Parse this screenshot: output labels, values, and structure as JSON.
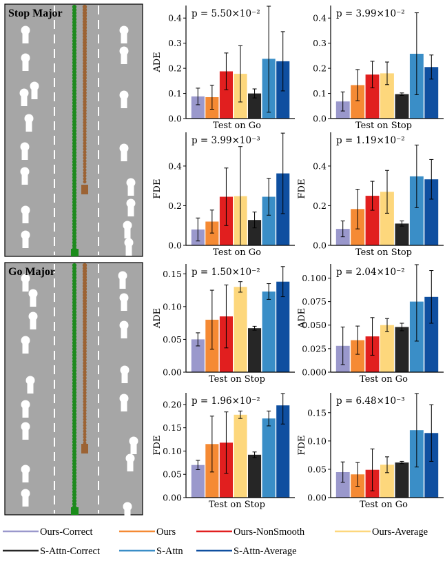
{
  "scenes": [
    {
      "title": "Stop Major",
      "agents": [
        [
          37,
          44
        ],
        [
          37,
          84
        ],
        [
          50,
          125
        ],
        [
          35,
          135
        ],
        [
          42,
          172
        ],
        [
          36,
          213
        ],
        [
          36,
          249
        ],
        [
          37,
          305
        ],
        [
          37,
          341
        ],
        [
          180,
          44
        ],
        [
          180,
          74
        ],
        [
          180,
          138
        ],
        [
          180,
          215
        ],
        [
          190,
          265
        ],
        [
          190,
          295
        ],
        [
          185,
          327
        ],
        [
          187,
          352
        ]
      ],
      "dots_to": 268,
      "car_y": 268
    },
    {
      "title": "Go Major",
      "agents": [
        [
          37,
          404
        ],
        [
          48,
          426
        ],
        [
          48,
          459
        ],
        [
          37,
          494
        ],
        [
          44,
          552
        ],
        [
          37,
          587
        ],
        [
          37,
          619
        ],
        [
          37,
          681
        ],
        [
          37,
          716
        ],
        [
          178,
          400
        ],
        [
          180,
          432
        ],
        [
          180,
          472
        ],
        [
          181,
          537
        ],
        [
          180,
          578
        ],
        [
          194,
          640
        ],
        [
          189,
          665
        ],
        [
          185,
          735
        ]
      ],
      "dots_to": 644,
      "car_y": 644
    }
  ],
  "chart_data": [
    {
      "type": "bar",
      "pos": "r1c1",
      "ylabel": "ADE",
      "xlabel": "Test on Go",
      "p": "p = 5.50×10⁻²",
      "ylim": [
        0,
        0.45
      ],
      "yticks": [
        0.0,
        0.1,
        0.2,
        0.3,
        0.4
      ],
      "ytick_labels": [
        "0.0",
        "0.1",
        "0.2",
        "0.3",
        "0.4"
      ],
      "values": [
        0.088,
        0.085,
        0.188,
        0.178,
        0.1,
        0.238,
        0.228
      ],
      "errors": [
        0.033,
        0.048,
        0.073,
        0.112,
        0.018,
        0.213,
        0.118
      ]
    },
    {
      "type": "bar",
      "pos": "r1c2",
      "ylabel": "",
      "xlabel": "Test on Stop",
      "p": "p = 3.99×10⁻²",
      "ylim": [
        0,
        0.45
      ],
      "yticks": [
        0.0,
        0.1,
        0.2,
        0.3,
        0.4
      ],
      "ytick_labels": [
        "0.0",
        "0.1",
        "0.2",
        "0.3",
        "0.4"
      ],
      "values": [
        0.068,
        0.133,
        0.175,
        0.18,
        0.097,
        0.258,
        0.205
      ],
      "errors": [
        0.038,
        0.062,
        0.053,
        0.045,
        0.005,
        0.163,
        0.048
      ]
    },
    {
      "type": "bar",
      "pos": "r2c1",
      "ylabel": "FDE",
      "xlabel": "Test on Go",
      "p": "p = 3.99×10⁻³",
      "ylim": [
        0,
        0.57
      ],
      "yticks": [
        0.0,
        0.2,
        0.4
      ],
      "ytick_labels": [
        "0.0",
        "0.2",
        "0.4"
      ],
      "values": [
        0.08,
        0.12,
        0.245,
        0.248,
        0.128,
        0.245,
        0.363
      ],
      "errors": [
        0.058,
        0.058,
        0.145,
        0.25,
        0.04,
        0.093,
        0.203
      ]
    },
    {
      "type": "bar",
      "pos": "r2c2",
      "ylabel": "FDE",
      "xlabel": "Test on Stop",
      "p": "p = 1.19×10⁻²",
      "ylim": [
        0,
        0.57
      ],
      "yticks": [
        0.0,
        0.2,
        0.4
      ],
      "ytick_labels": [
        "0.0",
        "0.2",
        "0.4"
      ],
      "values": [
        0.083,
        0.183,
        0.25,
        0.27,
        0.11,
        0.348,
        0.333
      ],
      "errors": [
        0.04,
        0.1,
        0.073,
        0.108,
        0.013,
        0.158,
        0.1
      ]
    },
    {
      "type": "bar",
      "pos": "r3c1",
      "ylabel": "ADE",
      "xlabel": "Test on Stop",
      "p": "p = 1.50×10⁻²",
      "ylim": [
        0,
        0.165
      ],
      "yticks": [
        0.0,
        0.05,
        0.1,
        0.15
      ],
      "ytick_labels": [
        "0.00",
        "0.05",
        "0.10",
        "0.15"
      ],
      "values": [
        0.05,
        0.08,
        0.085,
        0.13,
        0.067,
        0.123,
        0.138
      ],
      "errors": [
        0.01,
        0.045,
        0.048,
        0.008,
        0.003,
        0.012,
        0.023
      ]
    },
    {
      "type": "bar",
      "pos": "r3c2",
      "ylabel": "ADE",
      "xlabel": "Test on Go",
      "p": "p = 2.04×10⁻²",
      "ylim": [
        0,
        0.115
      ],
      "yticks": [
        0.0,
        0.025,
        0.05,
        0.075,
        0.1
      ],
      "ytick_labels": [
        "0.000",
        "0.025",
        "0.050",
        "0.075",
        "0.100"
      ],
      "values": [
        0.028,
        0.034,
        0.038,
        0.05,
        0.048,
        0.075,
        0.08
      ],
      "errors": [
        0.02,
        0.015,
        0.02,
        0.007,
        0.004,
        0.042,
        0.028
      ]
    },
    {
      "type": "bar",
      "pos": "r4c1",
      "ylabel": "FDE",
      "xlabel": "Test on Stop",
      "p": "p = 1.96×10⁻²",
      "ylim": [
        0,
        0.225
      ],
      "yticks": [
        0.0,
        0.05,
        0.1,
        0.15,
        0.2
      ],
      "ytick_labels": [
        "0.00",
        "0.05",
        "0.10",
        "0.15",
        "0.20"
      ],
      "values": [
        0.07,
        0.115,
        0.118,
        0.178,
        0.092,
        0.17,
        0.198
      ],
      "errors": [
        0.01,
        0.06,
        0.066,
        0.008,
        0.006,
        0.016,
        0.04
      ]
    },
    {
      "type": "bar",
      "pos": "r4c2",
      "ylabel": "FDE",
      "xlabel": "Test on Go",
      "p": "p = 6.48×10⁻³",
      "ylim": [
        0,
        0.185
      ],
      "yticks": [
        0.0,
        0.05,
        0.1,
        0.15
      ],
      "ytick_labels": [
        "0.00",
        "0.05",
        "0.10",
        "0.15"
      ],
      "values": [
        0.045,
        0.041,
        0.049,
        0.058,
        0.062,
        0.119,
        0.114
      ],
      "errors": [
        0.018,
        0.021,
        0.037,
        0.014,
        0.002,
        0.065,
        0.05
      ]
    }
  ],
  "legend": [
    {
      "label": "Ours-Correct",
      "color": "#9a98cc"
    },
    {
      "label": "Ours",
      "color": "#f58a34"
    },
    {
      "label": "Ours-NonSmooth",
      "color": "#e11f1f"
    },
    {
      "label": "Ours-Average",
      "color": "#fdd77c"
    },
    {
      "label": "S-Attn-Correct",
      "color": "#262626"
    },
    {
      "label": "S-Attn",
      "color": "#3a8ec7"
    },
    {
      "label": "S-Attn-Average",
      "color": "#0f4fa0"
    }
  ]
}
